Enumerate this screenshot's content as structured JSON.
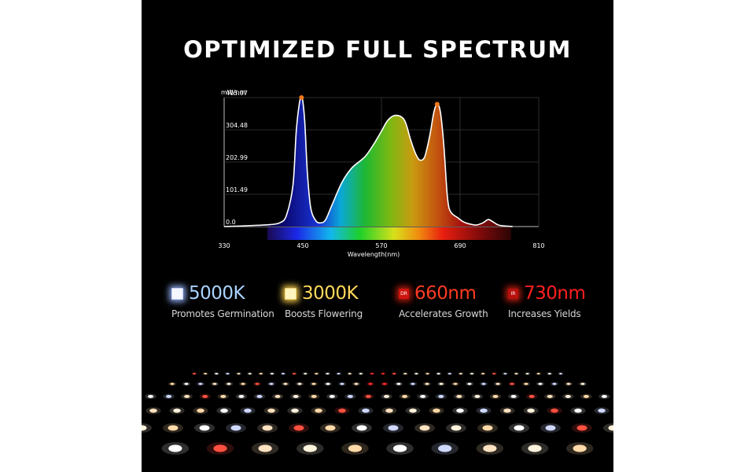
{
  "title": "OPTIMIZED FULL SPECTRUM",
  "colors": {
    "background": "#000000",
    "curve": "#ffffff",
    "peak_marker": "#f07a1c",
    "grid": "#3a3a3a"
  },
  "chart_data": {
    "type": "area",
    "title": "",
    "xlabel": "Wavelength(nm)",
    "ylabel": "mW/nm",
    "xlim": [
      330,
      810
    ],
    "ylim": [
      0,
      405.97
    ],
    "x_ticks": [
      "330",
      "450",
      "570",
      "690",
      "810"
    ],
    "y_ticks": [
      "0.0",
      "101.49",
      "202.99",
      "304.48",
      "405.97"
    ],
    "grid": true,
    "series": [
      {
        "x": [
          330,
          360,
          380,
          400,
          415,
          425,
          435,
          440,
          445,
          448,
          450,
          453,
          457,
          462,
          470,
          478,
          485,
          495,
          510,
          525,
          545,
          560,
          570,
          580,
          592,
          605,
          615,
          622,
          628,
          635,
          640,
          645,
          650,
          655,
          660,
          665,
          670,
          673,
          678,
          685,
          695,
          705,
          715,
          725,
          733,
          740,
          750,
          770
        ],
        "y": [
          0,
          2,
          4,
          6,
          12,
          35,
          130,
          300,
          390,
          405.97,
          395,
          330,
          170,
          60,
          18,
          12,
          22,
          70,
          140,
          185,
          220,
          265,
          300,
          335,
          350,
          335,
          270,
          230,
          210,
          215,
          250,
          300,
          360,
          385,
          360,
          260,
          110,
          60,
          40,
          30,
          15,
          8,
          5,
          12,
          22,
          15,
          4,
          0
        ]
      }
    ],
    "peaks": [
      {
        "x": 448,
        "y": 405.97
      },
      {
        "x": 655,
        "y": 385
      }
    ]
  },
  "features": [
    {
      "value": "5000K",
      "desc": "Promotes Germination",
      "color": "#a9d4ff",
      "icon": "white-led-icon",
      "icon_label": ""
    },
    {
      "value": "3000K",
      "desc": "Boosts Flowering",
      "color": "#ffd85a",
      "icon": "warm-led-icon",
      "icon_label": ""
    },
    {
      "value": "660nm",
      "desc": "Accelerates Growth",
      "color": "#ff3b22",
      "icon": "deep-red-led-icon",
      "icon_label": "DR"
    },
    {
      "value": "730nm",
      "desc": "Increases Yields",
      "color": "#ff1f1f",
      "icon": "infrared-led-icon",
      "icon_label": "IR"
    }
  ]
}
